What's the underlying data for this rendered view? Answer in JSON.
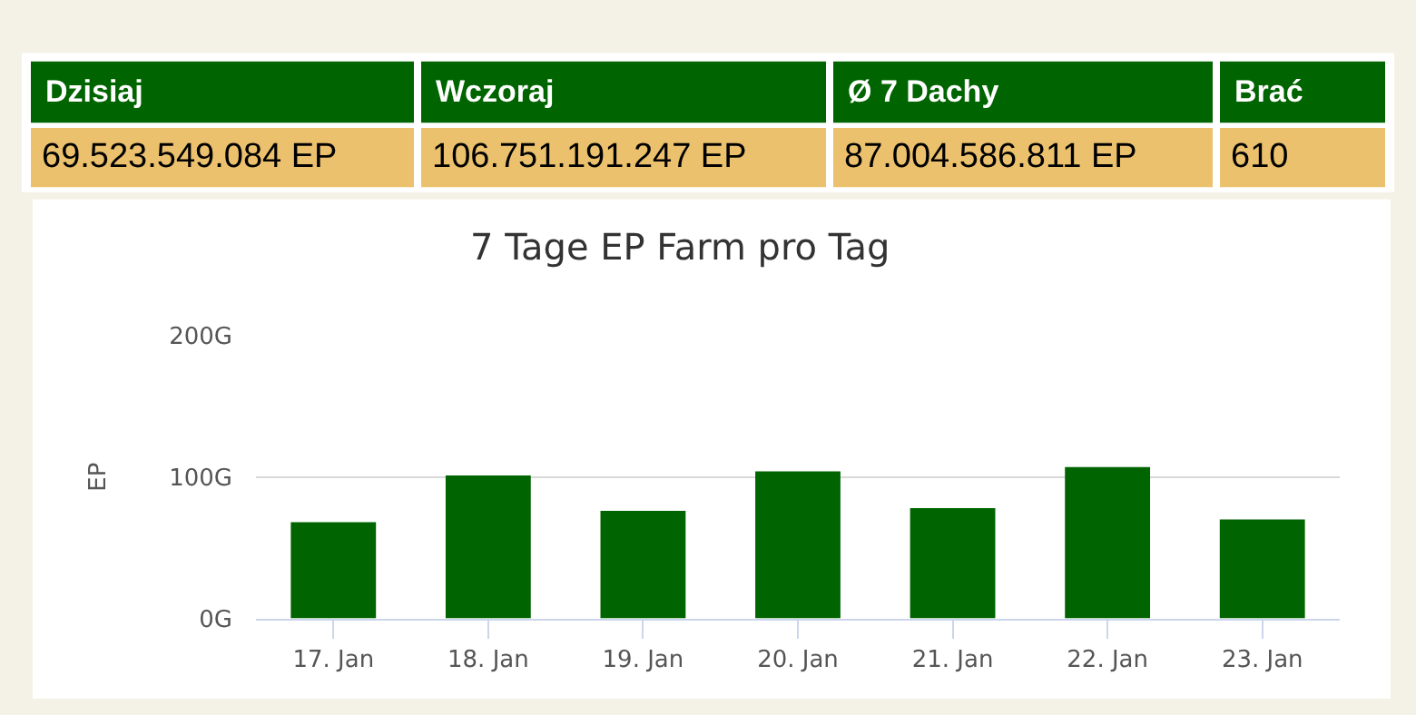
{
  "chart_data": [
    {
      "type": "other",
      "categories": [
        "Dzisiaj",
        "Wczoraj",
        "Ø 7 Dachy",
        "Brać"
      ],
      "value_labels": [
        "69.523.549.084 EP",
        "106.751.191.247 EP",
        "87.004.586.811 EP",
        "610"
      ]
    },
    {
      "type": "bar",
      "title": "7 Tage EP Farm pro Tag",
      "ylabel": "EP",
      "categories": [
        "17. Jan",
        "18. Jan",
        "19. Jan",
        "20. Jan",
        "21. Jan",
        "22. Jan",
        "23. Jan"
      ],
      "values": [
        68,
        101,
        76,
        104,
        78,
        107,
        70
      ],
      "color": "#006400",
      "ylim": [
        0,
        200
      ],
      "yticks": [
        {
          "value": 0,
          "label": "0G"
        },
        {
          "value": 100,
          "label": "100G"
        },
        {
          "value": 200,
          "label": "200G"
        }
      ],
      "grid": "y"
    }
  ]
}
